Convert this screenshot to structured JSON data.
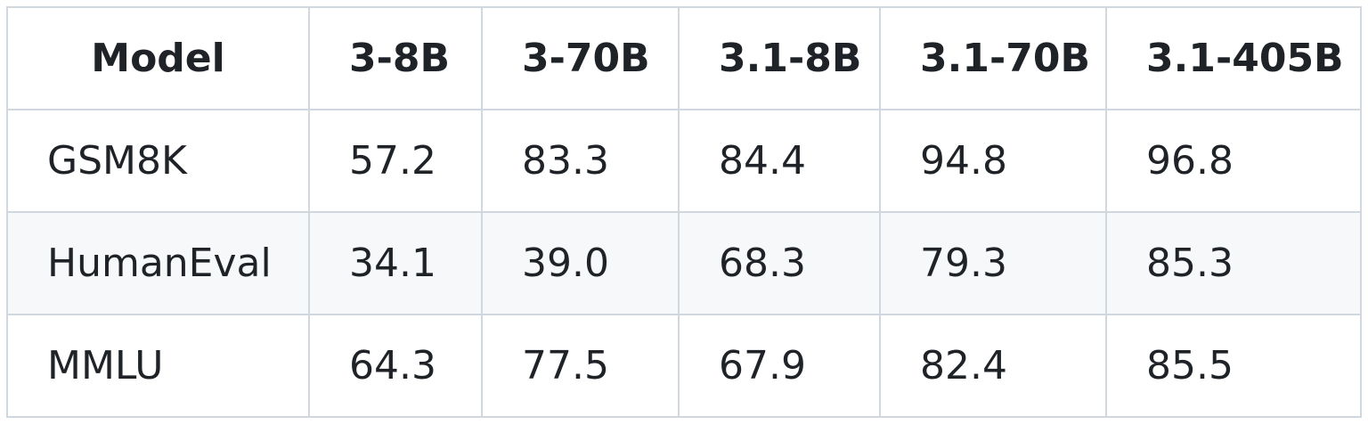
{
  "table": {
    "headers": [
      "Model",
      "3-8B",
      "3-70B",
      "3.1-8B",
      "3.1-70B",
      "3.1-405B"
    ],
    "rows": [
      {
        "metric": "GSM8K",
        "values": [
          "57.2",
          "83.3",
          "84.4",
          "94.8",
          "96.8"
        ]
      },
      {
        "metric": "HumanEval",
        "values": [
          "34.1",
          "39.0",
          "68.3",
          "79.3",
          "85.3"
        ]
      },
      {
        "metric": "MMLU",
        "values": [
          "64.3",
          "77.5",
          "67.9",
          "82.4",
          "85.5"
        ]
      }
    ]
  },
  "colors": {
    "border": "#d0d7de",
    "stripe": "#f6f8fa",
    "text": "#1f2328"
  }
}
